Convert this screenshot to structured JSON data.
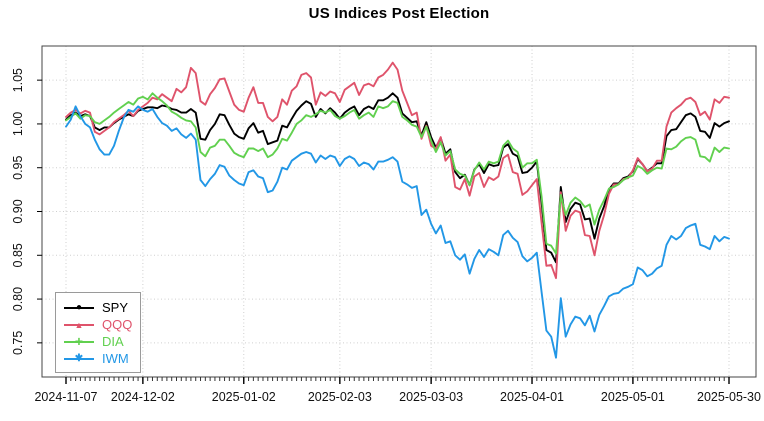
{
  "title": "US Indices Post Election",
  "chart_data": {
    "type": "line",
    "title": "US Indices Post Election",
    "xlabel": "",
    "ylabel": "",
    "grid": "dotted-lightgray",
    "legend_position": "bottom-left",
    "ylim": [
      0.711,
      1.089
    ],
    "y_ticks": [
      "0.75",
      "0.80",
      "0.85",
      "0.90",
      "0.95",
      "1.00",
      "1.05"
    ],
    "x_ticks": [
      {
        "label": "2024-11-07",
        "index": 0
      },
      {
        "label": "2024-12-02",
        "index": 16
      },
      {
        "label": "2025-01-02",
        "index": 37
      },
      {
        "label": "2025-02-03",
        "index": 57
      },
      {
        "label": "2025-03-03",
        "index": 76
      },
      {
        "label": "2025-04-01",
        "index": 97
      },
      {
        "label": "2025-05-01",
        "index": 118
      },
      {
        "label": "2025-05-30",
        "index": 138
      }
    ],
    "dates": [
      "2024-11-07",
      "2024-11-08",
      "2024-11-11",
      "2024-11-12",
      "2024-11-13",
      "2024-11-14",
      "2024-11-15",
      "2024-11-18",
      "2024-11-19",
      "2024-11-20",
      "2024-11-21",
      "2024-11-22",
      "2024-11-25",
      "2024-11-26",
      "2024-11-27",
      "2024-11-29",
      "2024-12-02",
      "2024-12-03",
      "2024-12-04",
      "2024-12-05",
      "2024-12-06",
      "2024-12-09",
      "2024-12-10",
      "2024-12-11",
      "2024-12-12",
      "2024-12-13",
      "2024-12-16",
      "2024-12-17",
      "2024-12-18",
      "2024-12-19",
      "2024-12-20",
      "2024-12-23",
      "2024-12-24",
      "2024-12-26",
      "2024-12-27",
      "2024-12-30",
      "2024-12-31",
      "2025-01-02",
      "2025-01-03",
      "2025-01-06",
      "2025-01-07",
      "2025-01-08",
      "2025-01-10",
      "2025-01-13",
      "2025-01-14",
      "2025-01-15",
      "2025-01-16",
      "2025-01-17",
      "2025-01-21",
      "2025-01-22",
      "2025-01-23",
      "2025-01-24",
      "2025-01-27",
      "2025-01-28",
      "2025-01-29",
      "2025-01-30",
      "2025-01-31",
      "2025-02-03",
      "2025-02-04",
      "2025-02-05",
      "2025-02-06",
      "2025-02-07",
      "2025-02-10",
      "2025-02-11",
      "2025-02-12",
      "2025-02-13",
      "2025-02-14",
      "2025-02-18",
      "2025-02-19",
      "2025-02-20",
      "2025-02-21",
      "2025-02-24",
      "2025-02-25",
      "2025-02-26",
      "2025-02-27",
      "2025-02-28",
      "2025-03-03",
      "2025-03-04",
      "2025-03-05",
      "2025-03-06",
      "2025-03-07",
      "2025-03-10",
      "2025-03-11",
      "2025-03-12",
      "2025-03-13",
      "2025-03-14",
      "2025-03-17",
      "2025-03-18",
      "2025-03-19",
      "2025-03-20",
      "2025-03-21",
      "2025-03-24",
      "2025-03-25",
      "2025-03-26",
      "2025-03-27",
      "2025-03-28",
      "2025-03-31",
      "2025-04-01",
      "2025-04-02",
      "2025-04-03",
      "2025-04-04",
      "2025-04-07",
      "2025-04-08",
      "2025-04-09",
      "2025-04-10",
      "2025-04-11",
      "2025-04-14",
      "2025-04-15",
      "2025-04-16",
      "2025-04-17",
      "2025-04-21",
      "2025-04-22",
      "2025-04-23",
      "2025-04-24",
      "2025-04-25",
      "2025-04-28",
      "2025-04-29",
      "2025-04-30",
      "2025-05-01",
      "2025-05-02",
      "2025-05-05",
      "2025-05-06",
      "2025-05-07",
      "2025-05-08",
      "2025-05-09",
      "2025-05-12",
      "2025-05-13",
      "2025-05-14",
      "2025-05-15",
      "2025-05-16",
      "2025-05-19",
      "2025-05-20",
      "2025-05-21",
      "2025-05-22",
      "2025-05-23",
      "2025-05-27",
      "2025-05-28",
      "2025-05-29",
      "2025-05-30"
    ],
    "series": [
      {
        "name": "SPY",
        "color": "#000000",
        "marker": "filled-circle",
        "glyph": "●",
        "values": [
          1.005,
          1.01,
          1.013,
          1.009,
          1.011,
          1.009,
          0.996,
          0.993,
          0.996,
          0.996,
          1.001,
          1.005,
          1.008,
          1.011,
          1.009,
          1.015,
          1.017,
          1.019,
          1.019,
          1.018,
          1.021,
          1.02,
          1.017,
          1.016,
          1.013,
          1.013,
          1.017,
          1.013,
          0.983,
          0.982,
          0.993,
          1.0,
          1.011,
          1.01,
          0.999,
          0.989,
          0.985,
          0.983,
          0.995,
          1.001,
          0.99,
          0.992,
          0.977,
          0.979,
          0.981,
          0.998,
          0.996,
          1.006,
          1.015,
          1.021,
          1.026,
          1.023,
          1.008,
          1.017,
          1.012,
          1.018,
          1.013,
          1.006,
          1.013,
          1.017,
          1.02,
          1.01,
          1.017,
          1.02,
          1.017,
          1.027,
          1.027,
          1.03,
          1.035,
          1.03,
          1.012,
          1.007,
          1.002,
          1.003,
          0.987,
          1.002,
          0.985,
          0.973,
          0.984,
          0.966,
          0.971,
          0.945,
          0.938,
          0.942,
          0.93,
          0.948,
          0.954,
          0.944,
          0.954,
          0.952,
          0.953,
          0.973,
          0.977,
          0.966,
          0.963,
          0.944,
          0.945,
          0.95,
          0.957,
          0.91,
          0.856,
          0.853,
          0.842,
          0.928,
          0.888,
          0.903,
          0.91,
          0.908,
          0.891,
          0.892,
          0.869,
          0.892,
          0.906,
          0.925,
          0.932,
          0.932,
          0.938,
          0.94,
          0.946,
          0.96,
          0.954,
          0.946,
          0.95,
          0.955,
          0.955,
          0.986,
          0.993,
          0.994,
          1.002,
          1.01,
          1.012,
          1.008,
          0.992,
          0.991,
          0.984,
          1.001,
          0.997,
          1.001,
          1.003
        ]
      },
      {
        "name": "QQQ",
        "color": "#DF536B",
        "marker": "filled-triangle",
        "glyph": "▲",
        "values": [
          1.008,
          1.013,
          1.016,
          1.012,
          1.015,
          1.013,
          0.991,
          0.988,
          0.992,
          0.996,
          1.002,
          1.006,
          1.01,
          1.015,
          1.009,
          1.016,
          1.02,
          1.024,
          1.03,
          1.028,
          1.034,
          1.03,
          1.026,
          1.04,
          1.036,
          1.042,
          1.064,
          1.058,
          1.026,
          1.022,
          1.034,
          1.041,
          1.051,
          1.052,
          1.037,
          1.022,
          1.016,
          1.014,
          1.03,
          1.042,
          1.024,
          1.024,
          1.008,
          1.003,
          1.008,
          1.028,
          1.022,
          1.038,
          1.043,
          1.056,
          1.058,
          1.053,
          1.022,
          1.036,
          1.032,
          1.037,
          1.035,
          1.025,
          1.039,
          1.043,
          1.047,
          1.033,
          1.044,
          1.046,
          1.043,
          1.053,
          1.056,
          1.062,
          1.07,
          1.062,
          1.038,
          1.024,
          1.01,
          1.013,
          0.983,
          0.998,
          0.975,
          0.972,
          0.985,
          0.958,
          0.965,
          0.928,
          0.925,
          0.937,
          0.918,
          0.94,
          0.944,
          0.928,
          0.939,
          0.936,
          0.94,
          0.961,
          0.965,
          0.945,
          0.943,
          0.919,
          0.923,
          0.93,
          0.937,
          0.887,
          0.838,
          0.839,
          0.824,
          0.922,
          0.878,
          0.895,
          0.901,
          0.899,
          0.873,
          0.872,
          0.85,
          0.878,
          0.896,
          0.92,
          0.931,
          0.931,
          0.937,
          0.938,
          0.947,
          0.961,
          0.954,
          0.946,
          0.949,
          0.958,
          0.958,
          0.997,
          1.013,
          1.018,
          1.022,
          1.028,
          1.03,
          1.025,
          1.01,
          1.014,
          1.005,
          1.028,
          1.024,
          1.031,
          1.03
        ]
      },
      {
        "name": "DIA",
        "color": "#61D04F",
        "marker": "plus",
        "glyph": "+",
        "values": [
          1.004,
          1.008,
          1.012,
          1.006,
          1.01,
          1.009,
          1.002,
          1.0,
          1.004,
          1.008,
          1.013,
          1.017,
          1.021,
          1.025,
          1.022,
          1.029,
          1.031,
          1.028,
          1.035,
          1.03,
          1.026,
          1.021,
          1.014,
          1.011,
          1.007,
          1.004,
          1.003,
          0.996,
          0.968,
          0.963,
          0.973,
          0.975,
          0.982,
          0.982,
          0.975,
          0.967,
          0.964,
          0.962,
          0.972,
          0.972,
          0.969,
          0.972,
          0.962,
          0.965,
          0.972,
          0.983,
          0.981,
          0.99,
          1.0,
          1.004,
          1.01,
          1.008,
          1.011,
          1.015,
          1.013,
          1.016,
          1.009,
          1.006,
          1.009,
          1.013,
          1.016,
          1.006,
          1.01,
          1.013,
          1.008,
          1.02,
          1.018,
          1.02,
          1.026,
          1.024,
          1.008,
          1.004,
          0.999,
          0.997,
          0.985,
          0.997,
          0.981,
          0.968,
          0.979,
          0.964,
          0.969,
          0.948,
          0.943,
          0.941,
          0.93,
          0.947,
          0.956,
          0.948,
          0.957,
          0.955,
          0.957,
          0.975,
          0.981,
          0.972,
          0.968,
          0.95,
          0.955,
          0.955,
          0.959,
          0.917,
          0.863,
          0.861,
          0.852,
          0.919,
          0.896,
          0.91,
          0.916,
          0.912,
          0.905,
          0.908,
          0.885,
          0.902,
          0.913,
          0.926,
          0.928,
          0.931,
          0.936,
          0.939,
          0.941,
          0.952,
          0.949,
          0.943,
          0.947,
          0.95,
          0.949,
          0.972,
          0.971,
          0.974,
          0.98,
          0.984,
          0.985,
          0.982,
          0.963,
          0.962,
          0.957,
          0.973,
          0.968,
          0.973,
          0.972
        ]
      },
      {
        "name": "IWM",
        "color": "#2297E6",
        "marker": "asterisk",
        "glyph": "✱",
        "values": [
          0.997,
          1.005,
          1.02,
          1.009,
          1.0,
          0.996,
          0.982,
          0.971,
          0.965,
          0.965,
          0.975,
          0.992,
          1.007,
          1.016,
          1.014,
          1.02,
          1.016,
          1.014,
          1.017,
          1.008,
          1.001,
          0.998,
          0.992,
          0.995,
          0.988,
          0.984,
          0.989,
          0.982,
          0.936,
          0.929,
          0.937,
          0.943,
          0.953,
          0.951,
          0.941,
          0.936,
          0.932,
          0.93,
          0.945,
          0.947,
          0.94,
          0.938,
          0.922,
          0.924,
          0.934,
          0.95,
          0.948,
          0.958,
          0.962,
          0.966,
          0.968,
          0.966,
          0.956,
          0.964,
          0.96,
          0.964,
          0.962,
          0.952,
          0.96,
          0.963,
          0.96,
          0.952,
          0.956,
          0.954,
          0.948,
          0.957,
          0.957,
          0.959,
          0.962,
          0.957,
          0.934,
          0.931,
          0.927,
          0.929,
          0.896,
          0.902,
          0.886,
          0.875,
          0.884,
          0.864,
          0.866,
          0.85,
          0.845,
          0.851,
          0.829,
          0.846,
          0.856,
          0.848,
          0.857,
          0.854,
          0.85,
          0.873,
          0.878,
          0.87,
          0.865,
          0.849,
          0.843,
          0.847,
          0.853,
          0.808,
          0.764,
          0.757,
          0.733,
          0.801,
          0.757,
          0.771,
          0.78,
          0.778,
          0.77,
          0.781,
          0.763,
          0.782,
          0.792,
          0.803,
          0.806,
          0.807,
          0.812,
          0.814,
          0.817,
          0.836,
          0.833,
          0.826,
          0.829,
          0.835,
          0.838,
          0.862,
          0.872,
          0.868,
          0.872,
          0.881,
          0.884,
          0.886,
          0.862,
          0.86,
          0.857,
          0.872,
          0.866,
          0.871,
          0.869
        ]
      }
    ]
  }
}
